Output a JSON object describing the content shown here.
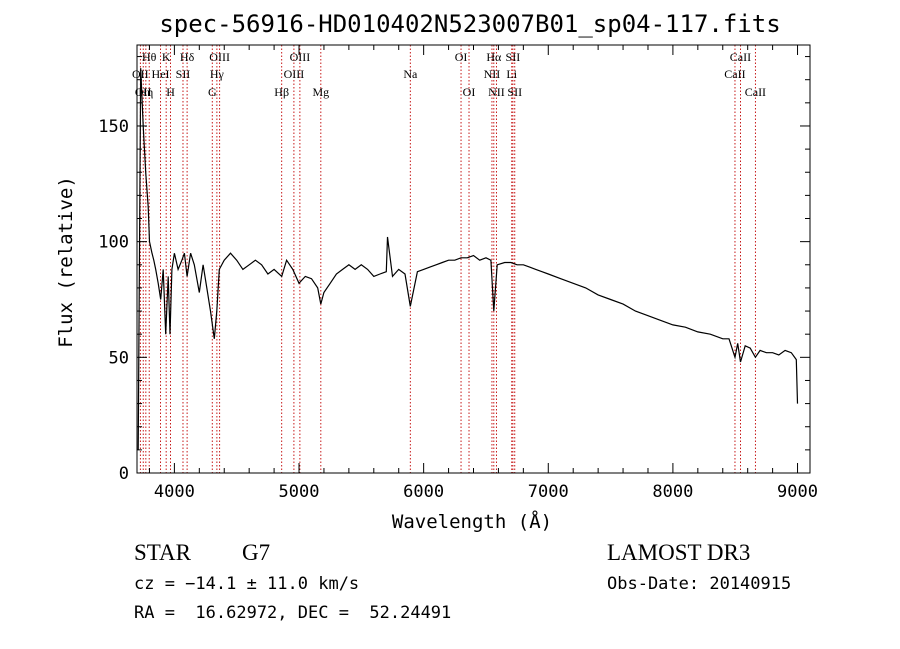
{
  "chart_data": {
    "type": "line",
    "title": "spec-56916-HD010402N523007B01_sp04-117.fits",
    "xlabel": "Wavelength (Å)",
    "ylabel": "Flux (relative)",
    "xlim": [
      3700,
      9100
    ],
    "ylim": [
      0,
      185
    ],
    "x_ticks": [
      4000,
      5000,
      6000,
      7000,
      8000,
      9000
    ],
    "x_tick_labels": [
      "4000",
      "5000",
      "6000",
      "7000",
      "8000",
      "9000"
    ],
    "y_ticks": [
      0,
      50,
      100,
      150
    ],
    "y_tick_labels": [
      "0",
      "50",
      "100",
      "150"
    ],
    "grid": false,
    "series": [
      {
        "x": [
          3710,
          3730,
          3750,
          3770,
          3790,
          3800,
          3820,
          3835,
          3850,
          3870,
          3890,
          3910,
          3930,
          3950,
          3965,
          3980,
          4000,
          4030,
          4060,
          4080,
          4102,
          4130,
          4160,
          4200,
          4230,
          4260,
          4290,
          4320,
          4340,
          4360,
          4400,
          4450,
          4500,
          4550,
          4600,
          4650,
          4700,
          4750,
          4800,
          4861,
          4900,
          4950,
          5000,
          5050,
          5100,
          5150,
          5175,
          5200,
          5250,
          5300,
          5350,
          5400,
          5450,
          5500,
          5550,
          5600,
          5650,
          5700,
          5710,
          5750,
          5800,
          5850,
          5893,
          5950,
          6000,
          6050,
          6100,
          6150,
          6200,
          6250,
          6300,
          6350,
          6400,
          6450,
          6500,
          6540,
          6563,
          6590,
          6650,
          6700,
          6750,
          6800,
          6850,
          6900,
          6950,
          7000,
          7100,
          7200,
          7300,
          7400,
          7500,
          7600,
          7700,
          7800,
          7900,
          8000,
          8100,
          8200,
          8300,
          8400,
          8450,
          8498,
          8520,
          8542,
          8580,
          8620,
          8662,
          8700,
          8750,
          8800,
          8850,
          8900,
          8950,
          8990,
          9000
        ],
        "y": [
          10,
          175,
          150,
          130,
          115,
          100,
          95,
          92,
          88,
          82,
          75,
          88,
          60,
          85,
          60,
          88,
          95,
          88,
          92,
          95,
          85,
          95,
          90,
          78,
          90,
          80,
          70,
          58,
          70,
          88,
          92,
          95,
          92,
          88,
          90,
          92,
          90,
          86,
          88,
          85,
          92,
          88,
          82,
          85,
          84,
          80,
          73,
          78,
          82,
          86,
          88,
          90,
          88,
          90,
          88,
          85,
          86,
          87,
          102,
          85,
          88,
          86,
          72,
          87,
          88,
          89,
          90,
          91,
          92,
          92,
          93,
          93,
          94,
          92,
          93,
          92,
          70,
          90,
          91,
          91,
          90,
          90,
          89,
          88,
          87,
          86,
          84,
          82,
          80,
          77,
          75,
          73,
          70,
          68,
          66,
          64,
          63,
          61,
          60,
          58,
          58,
          50,
          56,
          48,
          55,
          54,
          50,
          53,
          52,
          52,
          51,
          53,
          52,
          49,
          30
        ]
      }
    ],
    "lines": [
      {
        "x": 3727,
        "top": "",
        "mid": "OII",
        "bot": ""
      },
      {
        "x": 3750,
        "top": "",
        "mid": "",
        "bot": "OII"
      },
      {
        "x": 3771,
        "top": "",
        "mid": "",
        "bot": "Hη"
      },
      {
        "x": 3798,
        "top": "Hθ",
        "mid": "",
        "bot": ""
      },
      {
        "x": 3889,
        "top": "",
        "mid": "HeI",
        "bot": ""
      },
      {
        "x": 3934,
        "top": "K",
        "mid": "",
        "bot": ""
      },
      {
        "x": 3969,
        "top": "",
        "mid": "",
        "bot": "H"
      },
      {
        "x": 4069,
        "top": "",
        "mid": "SII",
        "bot": ""
      },
      {
        "x": 4102,
        "top": "Hδ",
        "mid": "",
        "bot": ""
      },
      {
        "x": 4304,
        "top": "",
        "mid": "",
        "bot": "G"
      },
      {
        "x": 4341,
        "top": "",
        "mid": "Hγ",
        "bot": ""
      },
      {
        "x": 4363,
        "top": "OIII",
        "mid": "",
        "bot": ""
      },
      {
        "x": 4861,
        "top": "",
        "mid": "",
        "bot": "Hβ"
      },
      {
        "x": 4959,
        "top": "",
        "mid": "OIII",
        "bot": ""
      },
      {
        "x": 5007,
        "top": "OIII",
        "mid": "",
        "bot": ""
      },
      {
        "x": 5175,
        "top": "",
        "mid": "",
        "bot": "Mg"
      },
      {
        "x": 5893,
        "top": "",
        "mid": "Na",
        "bot": ""
      },
      {
        "x": 6300,
        "top": "OI",
        "mid": "",
        "bot": ""
      },
      {
        "x": 6364,
        "top": "",
        "mid": "",
        "bot": "OI"
      },
      {
        "x": 6548,
        "top": "",
        "mid": "NII",
        "bot": ""
      },
      {
        "x": 6563,
        "top": "Hα",
        "mid": "",
        "bot": ""
      },
      {
        "x": 6584,
        "top": "",
        "mid": "",
        "bot": "NII"
      },
      {
        "x": 6707,
        "top": "",
        "mid": "Li",
        "bot": ""
      },
      {
        "x": 6716,
        "top": "SII",
        "mid": "",
        "bot": ""
      },
      {
        "x": 6731,
        "top": "",
        "mid": "",
        "bot": "SII"
      },
      {
        "x": 8498,
        "top": "",
        "mid": "CaII",
        "bot": ""
      },
      {
        "x": 8542,
        "top": "CaII",
        "mid": "",
        "bot": ""
      },
      {
        "x": 8662,
        "top": "",
        "mid": "",
        "bot": "CaII"
      }
    ]
  },
  "info": {
    "object_class": "STAR",
    "subclass": "G7",
    "redshift": "cz = −14.1 ± 11.0 km/s",
    "coords": "RA =  16.62972, DEC =  52.24491",
    "survey": "LAMOST DR3",
    "obs_date": "Obs-Date: 20140915"
  },
  "colors": {
    "spectrum": "#000000",
    "line_marker": "#c00000",
    "axes": "#000000"
  }
}
